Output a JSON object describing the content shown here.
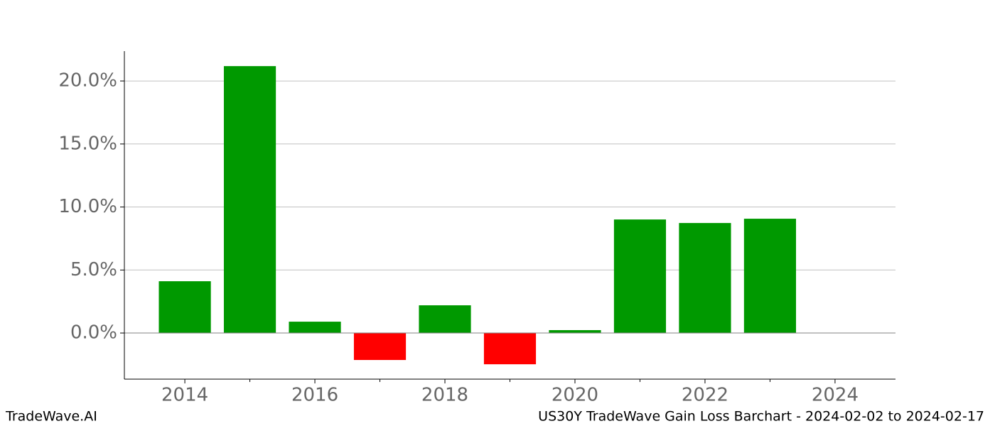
{
  "chart_data": {
    "type": "bar",
    "title": "US30Y TradeWave Gain Loss Barchart - 2024-02-02 to 2024-02-17",
    "brand": "TradeWave.AI",
    "x": [
      2014,
      2015,
      2016,
      2017,
      2018,
      2019,
      2020,
      2021,
      2022,
      2023
    ],
    "values": [
      4.11,
      21.18,
      0.9,
      -2.14,
      2.2,
      -2.48,
      0.23,
      9.01,
      8.73,
      9.07
    ],
    "positive_color": "#009900",
    "negative_color": "#ff0000",
    "xlim": [
      2013.07,
      2024.93
    ],
    "xticks": [
      2014,
      2016,
      2018,
      2020,
      2022,
      2024
    ],
    "xminorticks": [
      2015,
      2017,
      2019,
      2021,
      2023
    ],
    "ylim": [
      -3.66,
      22.37
    ],
    "yticks": [
      {
        "value": 0,
        "label": "0.0%"
      },
      {
        "value": 5,
        "label": "5.0%"
      },
      {
        "value": 10,
        "label": "10.0%"
      },
      {
        "value": 15,
        "label": "15.0%"
      },
      {
        "value": 20,
        "label": "20.0%"
      }
    ],
    "grid": true
  }
}
